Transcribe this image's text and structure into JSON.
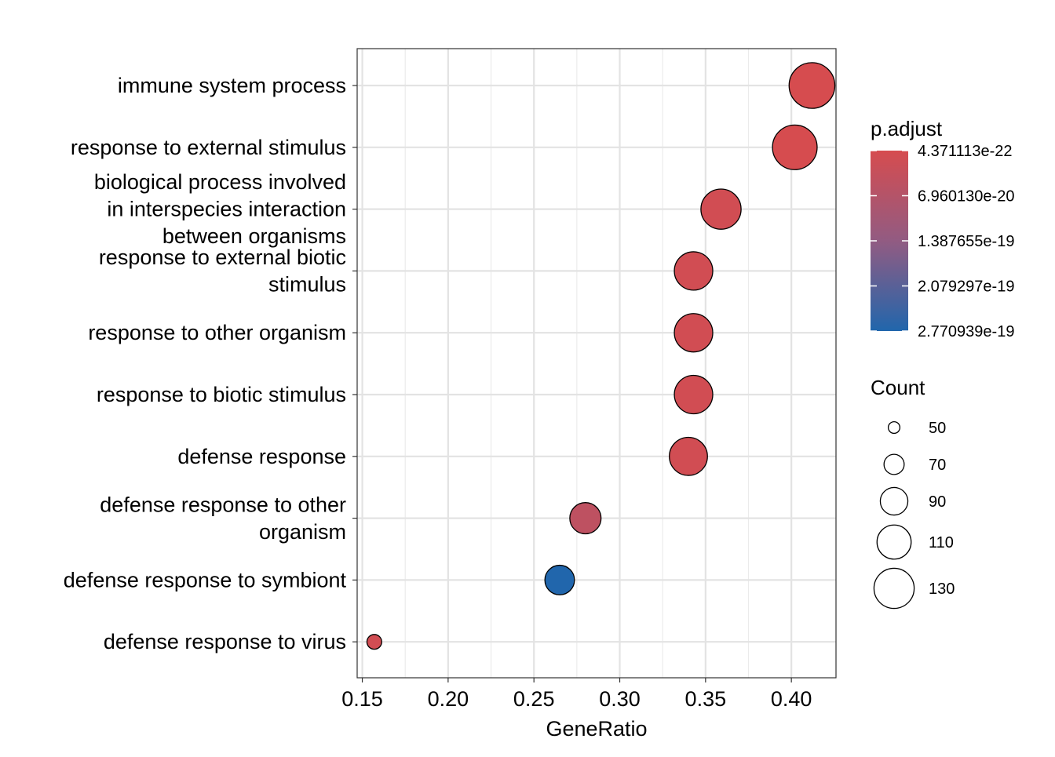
{
  "chart_data": {
    "type": "scatter",
    "title": "",
    "xlabel": "GeneRatio",
    "ylabel": "",
    "xlim": [
      0.147,
      0.426
    ],
    "x_ticks": [
      0.15,
      0.2,
      0.25,
      0.3,
      0.35,
      0.4
    ],
    "x_tick_labels": [
      "0.15",
      "0.20",
      "0.25",
      "0.30",
      "0.35",
      "0.40"
    ],
    "grid": true,
    "categories": [
      [
        "immune system process"
      ],
      [
        "response to external stimulus"
      ],
      [
        "biological process involved",
        "in interspecies interaction",
        "between organisms"
      ],
      [
        "response to external biotic",
        "stimulus"
      ],
      [
        "response to other organism"
      ],
      [
        "response to biotic stimulus"
      ],
      [
        "defense response"
      ],
      [
        "defense response to other",
        "organism"
      ],
      [
        "defense response to symbiont"
      ],
      [
        "defense response to virus"
      ]
    ],
    "points": [
      {
        "gene_ratio": 0.412,
        "count": 150,
        "p_adjust": 4.4e-22
      },
      {
        "gene_ratio": 0.402,
        "count": 146,
        "p_adjust": 4.4e-22
      },
      {
        "gene_ratio": 0.359,
        "count": 130,
        "p_adjust": 1e-20
      },
      {
        "gene_ratio": 0.343,
        "count": 124,
        "p_adjust": 1e-20
      },
      {
        "gene_ratio": 0.343,
        "count": 124,
        "p_adjust": 1e-20
      },
      {
        "gene_ratio": 0.343,
        "count": 124,
        "p_adjust": 1e-20
      },
      {
        "gene_ratio": 0.34,
        "count": 123,
        "p_adjust": 1e-20
      },
      {
        "gene_ratio": 0.28,
        "count": 101,
        "p_adjust": 5e-20
      },
      {
        "gene_ratio": 0.265,
        "count": 96,
        "p_adjust": 2.770939e-19
      },
      {
        "gene_ratio": 0.157,
        "count": 57,
        "p_adjust": 1e-20
      }
    ],
    "legend_color": {
      "title": "p.adjust",
      "labels": [
        "4.371113e-22",
        "6.960130e-20",
        "1.387655e-19",
        "2.079297e-19",
        "2.770939e-19"
      ],
      "values": [
        4.371113e-22,
        6.96013e-20,
        1.387655e-19,
        2.079297e-19,
        2.770939e-19
      ],
      "color_low_value": "#d64c4f",
      "color_high_value": "#2166ac",
      "placement": "right"
    },
    "legend_size": {
      "title": "Count",
      "labels": [
        "50",
        "70",
        "90",
        "110",
        "130"
      ],
      "values": [
        50,
        70,
        90,
        110,
        130
      ],
      "placement": "right"
    }
  }
}
